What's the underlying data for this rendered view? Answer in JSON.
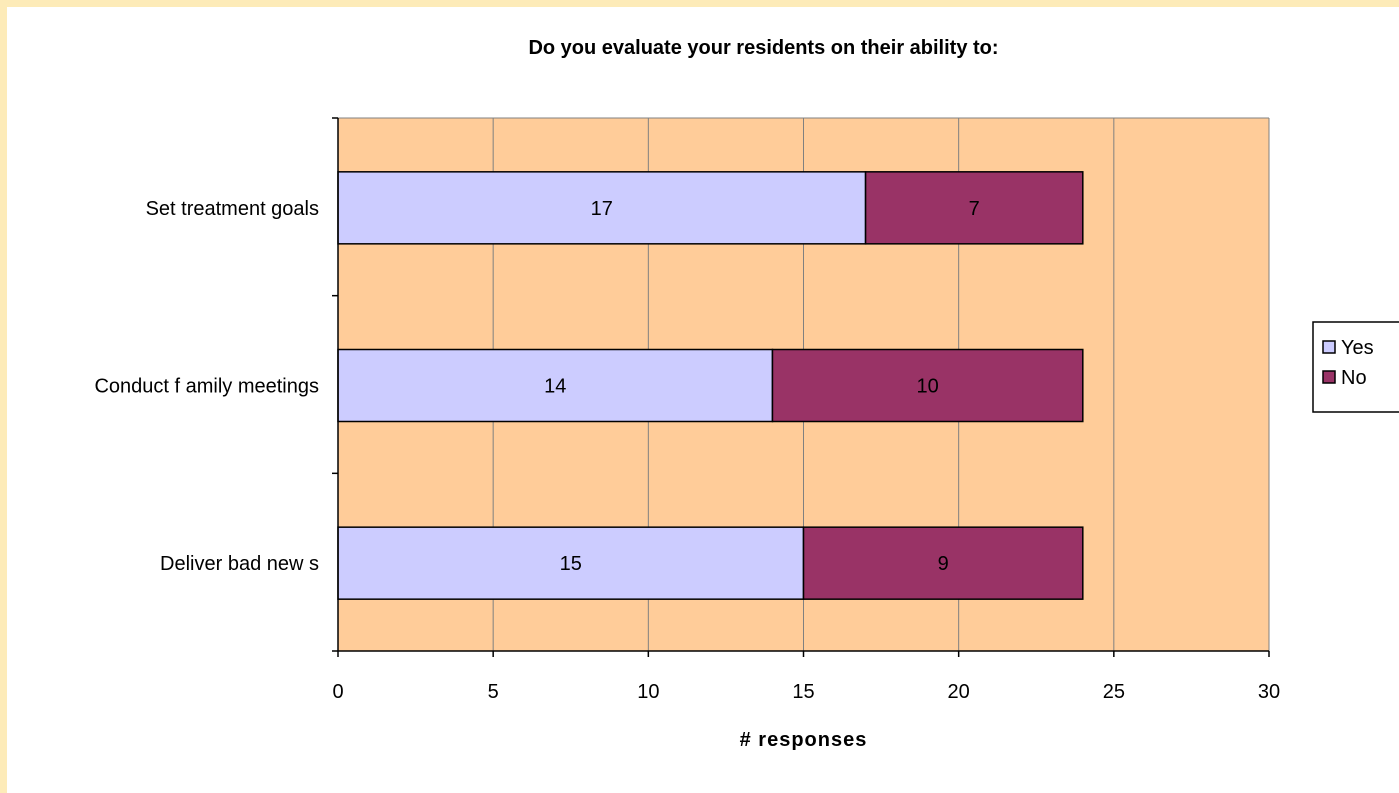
{
  "chart_data": {
    "type": "bar",
    "orientation": "horizontal",
    "stacked": true,
    "title": "Do you evaluate your residents on their ability to:",
    "xlabel": "# responses",
    "ylabel": "",
    "xlim": [
      0,
      30
    ],
    "x_ticks": [
      0,
      5,
      10,
      15,
      20,
      25,
      30
    ],
    "categories": [
      "Set treatment goals",
      "Conduct f amily meetings",
      "Deliver bad new s"
    ],
    "series": [
      {
        "name": "Yes",
        "values": [
          17,
          14,
          15
        ],
        "color": "#CCCCFF"
      },
      {
        "name": "No",
        "values": [
          7,
          10,
          9
        ],
        "color": "#993366"
      }
    ],
    "grid": "vertical",
    "legend": "right",
    "plot_background": "#FFCC99"
  }
}
